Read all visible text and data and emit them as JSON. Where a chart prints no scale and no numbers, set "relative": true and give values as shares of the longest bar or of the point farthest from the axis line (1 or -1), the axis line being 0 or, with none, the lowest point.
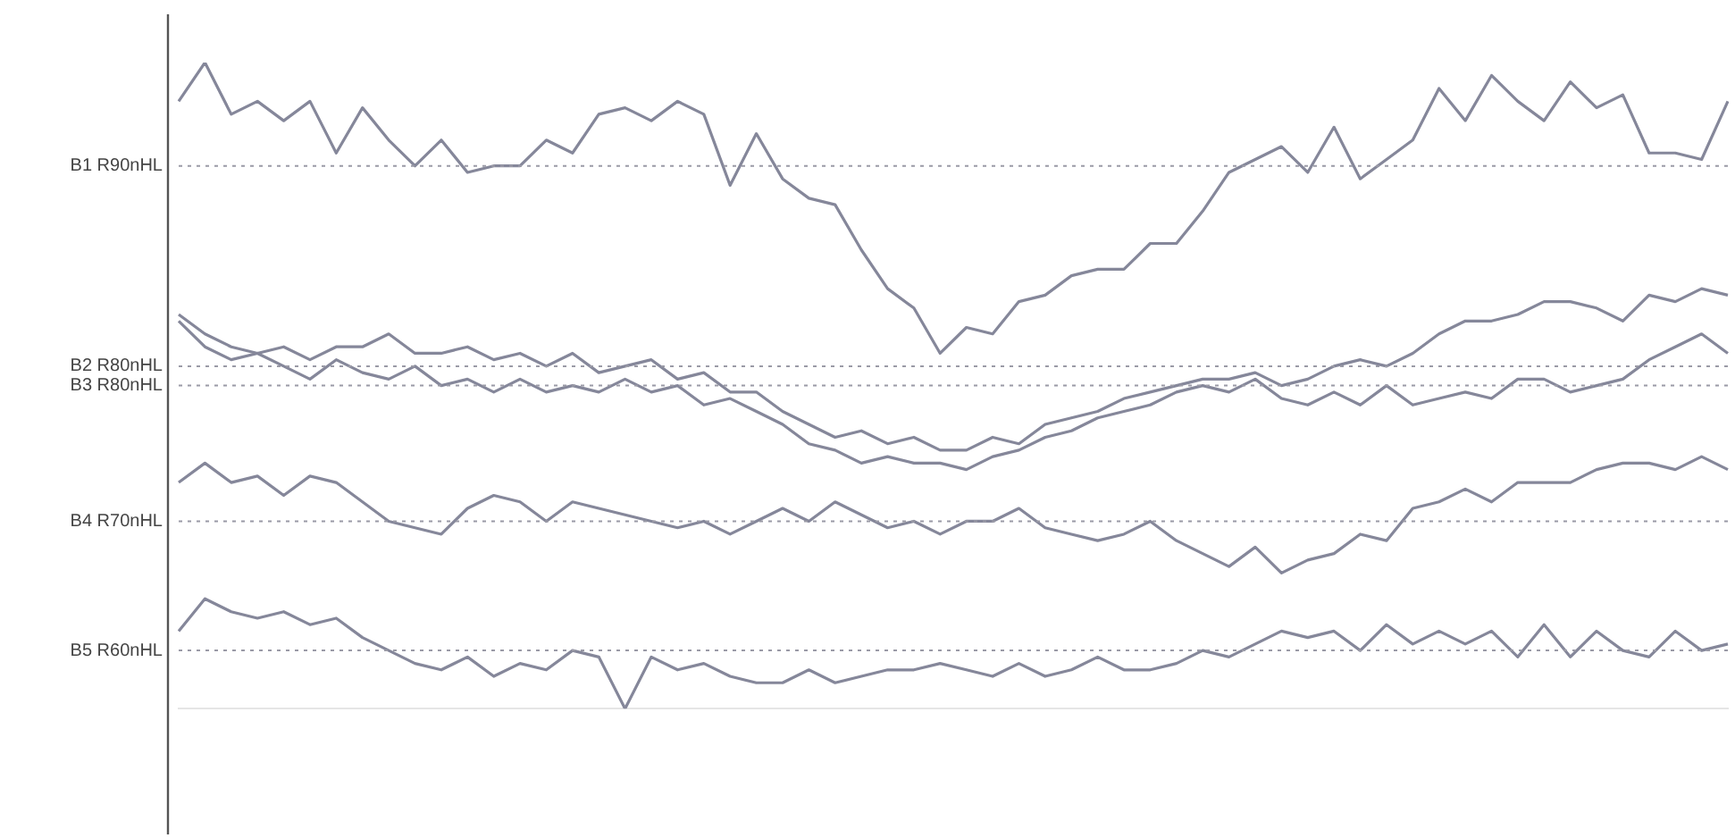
{
  "chart_data": {
    "type": "line",
    "relative": true,
    "grid": false,
    "legend": false,
    "marker": "none",
    "line_style": "solid",
    "categories": [
      null,
      null,
      null,
      null,
      null,
      null,
      null,
      null,
      null,
      null,
      null,
      null,
      null,
      null,
      null,
      null,
      null,
      null,
      null,
      null,
      null,
      null,
      null,
      null,
      null,
      null,
      null,
      null,
      null,
      null,
      null,
      null,
      null,
      null,
      null,
      null,
      null,
      null,
      null,
      null,
      null,
      null,
      null,
      null,
      null,
      null,
      null,
      null,
      null,
      null,
      null,
      null,
      null,
      null,
      null,
      null,
      null,
      null,
      null,
      null
    ],
    "series": [
      {
        "color": "#85879a",
        "values": [
          0.94,
          1.0,
          0.92,
          0.94,
          0.91,
          0.94,
          0.86,
          0.93,
          0.88,
          0.84,
          0.88,
          0.83,
          0.84,
          0.84,
          0.88,
          0.86,
          0.92,
          0.93,
          0.91,
          0.94,
          0.92,
          0.81,
          0.89,
          0.82,
          0.79,
          0.78,
          0.71,
          0.65,
          0.62,
          0.55,
          0.59,
          0.58,
          0.63,
          0.64,
          0.67,
          0.68,
          0.68,
          0.72,
          0.72,
          0.77,
          0.83,
          0.85,
          0.87,
          0.83,
          0.9,
          0.82,
          0.85,
          0.88,
          0.96,
          0.91,
          0.98,
          0.94,
          0.91,
          0.97,
          0.93,
          0.95,
          0.86,
          0.86,
          0.85,
          0.94
        ]
      },
      {
        "color": "#85879a",
        "values": [
          0.61,
          0.58,
          0.56,
          0.55,
          0.56,
          0.54,
          0.56,
          0.56,
          0.58,
          0.55,
          0.55,
          0.56,
          0.54,
          0.55,
          0.53,
          0.55,
          0.52,
          0.53,
          0.54,
          0.51,
          0.52,
          0.49,
          0.49,
          0.46,
          0.44,
          0.42,
          0.43,
          0.41,
          0.42,
          0.4,
          0.4,
          0.42,
          0.41,
          0.44,
          0.45,
          0.46,
          0.48,
          0.49,
          0.5,
          0.51,
          0.51,
          0.52,
          0.5,
          0.51,
          0.53,
          0.54,
          0.53,
          0.55,
          0.58,
          0.6,
          0.6,
          0.61,
          0.63,
          0.63,
          0.62,
          0.6,
          0.64,
          0.63,
          0.65,
          0.64
        ]
      },
      {
        "color": "#85879a",
        "values": [
          0.6,
          0.56,
          0.54,
          0.55,
          0.53,
          0.51,
          0.54,
          0.52,
          0.51,
          0.53,
          0.5,
          0.51,
          0.49,
          0.51,
          0.49,
          0.5,
          0.49,
          0.51,
          0.49,
          0.5,
          0.47,
          0.48,
          0.46,
          0.44,
          0.41,
          0.4,
          0.38,
          0.39,
          0.38,
          0.38,
          0.37,
          0.39,
          0.4,
          0.42,
          0.43,
          0.45,
          0.46,
          0.47,
          0.49,
          0.5,
          0.49,
          0.51,
          0.48,
          0.47,
          0.49,
          0.47,
          0.5,
          0.47,
          0.48,
          0.49,
          0.48,
          0.51,
          0.51,
          0.49,
          0.5,
          0.51,
          0.54,
          0.56,
          0.58,
          0.55
        ]
      },
      {
        "color": "#85879a",
        "values": [
          0.35,
          0.38,
          0.35,
          0.36,
          0.33,
          0.36,
          0.35,
          0.32,
          0.29,
          0.28,
          0.27,
          0.31,
          0.33,
          0.32,
          0.29,
          0.32,
          0.31,
          0.3,
          0.29,
          0.28,
          0.29,
          0.27,
          0.29,
          0.31,
          0.29,
          0.32,
          0.3,
          0.28,
          0.29,
          0.27,
          0.29,
          0.29,
          0.31,
          0.28,
          0.27,
          0.26,
          0.27,
          0.29,
          0.26,
          0.24,
          0.22,
          0.25,
          0.21,
          0.23,
          0.24,
          0.27,
          0.26,
          0.31,
          0.32,
          0.34,
          0.32,
          0.35,
          0.35,
          0.35,
          0.37,
          0.38,
          0.38,
          0.37,
          0.39,
          0.37
        ]
      },
      {
        "color": "#85879a",
        "values": [
          0.12,
          0.17,
          0.15,
          0.14,
          0.15,
          0.13,
          0.14,
          0.11,
          0.09,
          0.07,
          0.06,
          0.08,
          0.05,
          0.07,
          0.06,
          0.09,
          0.08,
          0.0,
          0.08,
          0.06,
          0.07,
          0.05,
          0.04,
          0.04,
          0.06,
          0.04,
          0.05,
          0.06,
          0.06,
          0.07,
          0.06,
          0.05,
          0.07,
          0.05,
          0.06,
          0.08,
          0.06,
          0.06,
          0.07,
          0.09,
          0.08,
          0.1,
          0.12,
          0.11,
          0.12,
          0.09,
          0.13,
          0.1,
          0.12,
          0.1,
          0.12,
          0.08,
          0.13,
          0.08,
          0.12,
          0.09,
          0.08,
          0.12,
          0.09,
          0.1
        ]
      }
    ],
    "ref_lines": [
      {
        "axis": "y",
        "value": 0.84,
        "label": "B1 R90nHL",
        "color": "#9a9aa6",
        "line_style": "dotted"
      },
      {
        "axis": "y",
        "value": 0.53,
        "label": "B2 R80nHL",
        "color": "#9a9aa6",
        "line_style": "dotted"
      },
      {
        "axis": "y",
        "value": 0.5,
        "label": "B3 R80nHL",
        "color": "#9a9aa6",
        "line_style": "dotted"
      },
      {
        "axis": "y",
        "value": 0.29,
        "label": "B4 R70nHL",
        "color": "#9a9aa6",
        "line_style": "dotted"
      },
      {
        "axis": "y",
        "value": 0.09,
        "label": "B5 R60nHL",
        "color": "#9a9aa6",
        "line_style": "dotted"
      }
    ]
  }
}
